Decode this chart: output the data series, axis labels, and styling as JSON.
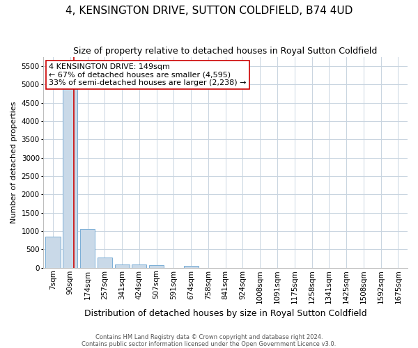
{
  "title": "4, KENSINGTON DRIVE, SUTTON COLDFIELD, B74 4UD",
  "subtitle": "Size of property relative to detached houses in Royal Sutton Coldfield",
  "xlabel": "Distribution of detached houses by size in Royal Sutton Coldfield",
  "ylabel": "Number of detached properties",
  "footer_line1": "Contains HM Land Registry data © Crown copyright and database right 2024.",
  "footer_line2": "Contains public sector information licensed under the Open Government Licence v3.0.",
  "bar_labels": [
    "7sqm",
    "90sqm",
    "174sqm",
    "257sqm",
    "341sqm",
    "424sqm",
    "507sqm",
    "591sqm",
    "674sqm",
    "758sqm",
    "841sqm",
    "924sqm",
    "1008sqm",
    "1091sqm",
    "1175sqm",
    "1258sqm",
    "1341sqm",
    "1425sqm",
    "1508sqm",
    "1592sqm",
    "1675sqm"
  ],
  "bar_values": [
    850,
    5500,
    1050,
    280,
    80,
    80,
    60,
    0,
    50,
    0,
    0,
    0,
    0,
    0,
    0,
    0,
    0,
    0,
    0,
    0,
    0
  ],
  "bar_color": "#c9d9e8",
  "bar_edgecolor": "#7aaed6",
  "ylim": [
    0,
    5750
  ],
  "yticks": [
    0,
    500,
    1000,
    1500,
    2000,
    2500,
    3000,
    3500,
    4000,
    4500,
    5000,
    5500
  ],
  "red_line_color": "#cc0000",
  "annotation_line1": "4 KENSINGTON DRIVE: 149sqm",
  "annotation_line2": "← 67% of detached houses are smaller (4,595)",
  "annotation_line3": "33% of semi-detached houses are larger (2,238) →",
  "annotation_box_color": "#ffffff",
  "annotation_box_edgecolor": "#cc0000",
  "background_color": "#ffffff",
  "grid_color": "#c8d4e0",
  "title_fontsize": 11,
  "subtitle_fontsize": 9,
  "ylabel_fontsize": 8,
  "xlabel_fontsize": 9,
  "tick_fontsize": 7.5,
  "annotation_fontsize": 8,
  "footer_fontsize": 6,
  "red_line_x": 1.2
}
